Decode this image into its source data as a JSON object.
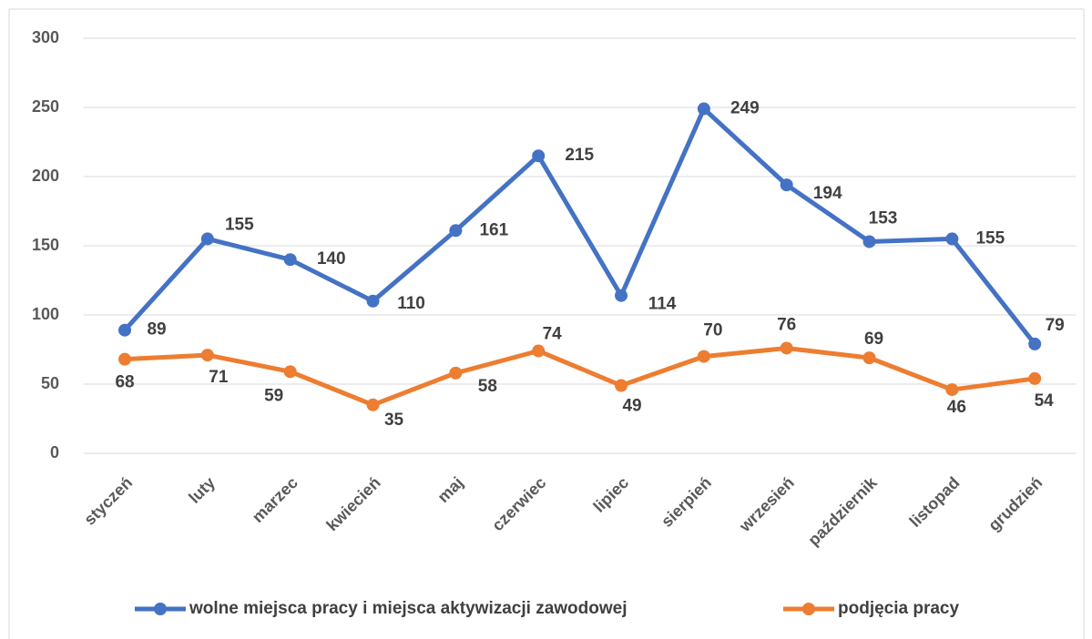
{
  "chart_data": {
    "type": "line",
    "categories": [
      "styczeń",
      "luty",
      "marzec",
      "kwiecień",
      "maj",
      "czerwiec",
      "lipiec",
      "sierpień",
      "wrzesień",
      "październik",
      "listopad",
      "grudzień"
    ],
    "series": [
      {
        "name": "wolne miejsca pracy i miejsca aktywizacji zawodowej",
        "color": "#4472c4",
        "values": [
          89,
          155,
          140,
          110,
          161,
          215,
          114,
          249,
          194,
          153,
          155,
          79
        ]
      },
      {
        "name": "podjęcia pracy",
        "color": "#ed7d31",
        "values": [
          68,
          71,
          59,
          35,
          58,
          74,
          49,
          70,
          76,
          69,
          46,
          54
        ]
      }
    ],
    "ylim": [
      0,
      300
    ],
    "yticks": [
      0,
      50,
      100,
      150,
      200,
      250,
      300
    ],
    "grid": true,
    "legend": "bottom"
  }
}
